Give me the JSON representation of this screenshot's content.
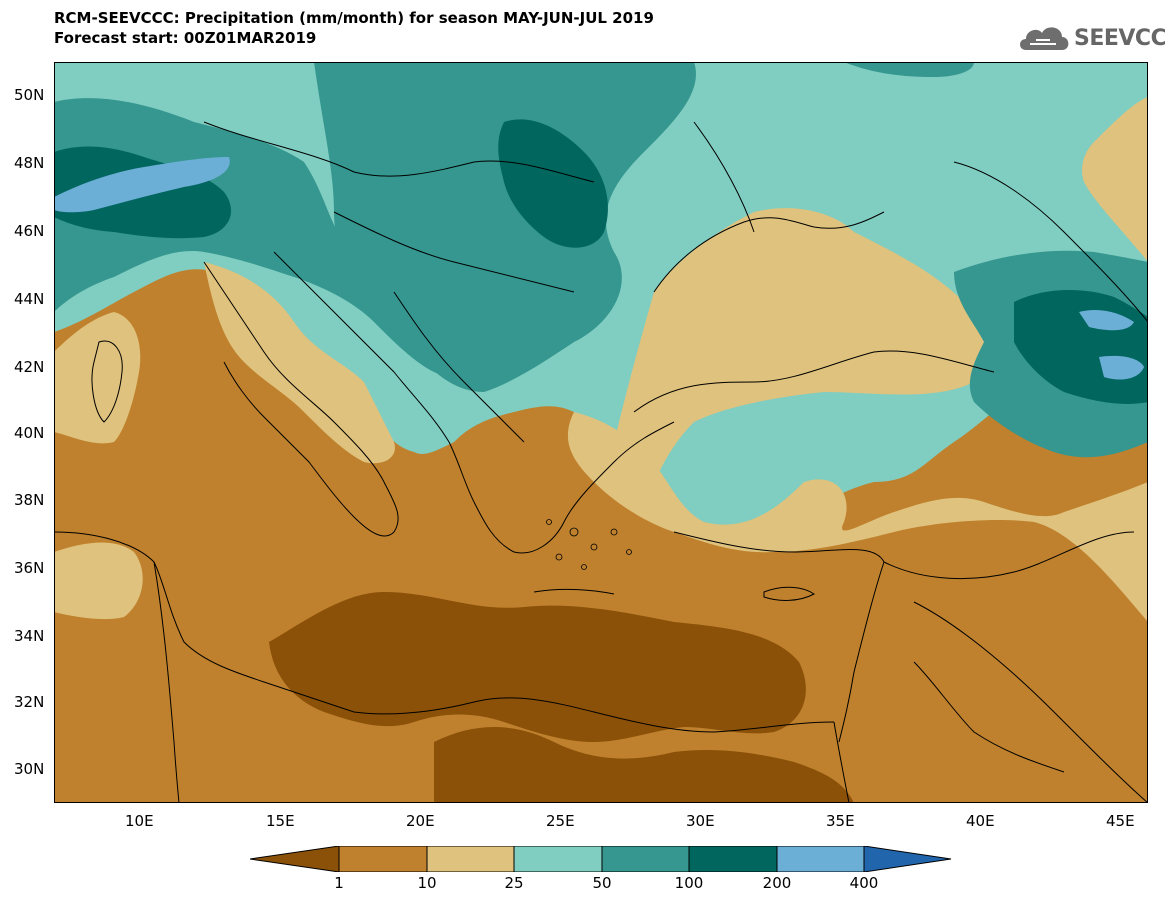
{
  "header": {
    "title": "RCM-SEEVCCC: Precipitation (mm/month) for season MAY-JUN-JUL 2019",
    "subtitle": "Forecast start: 00Z01MAR2019",
    "logo_text": "SEEVCCC"
  },
  "map": {
    "latitude_labels": [
      "50N",
      "48N",
      "46N",
      "44N",
      "42N",
      "40N",
      "38N",
      "36N",
      "34N",
      "32N",
      "30N"
    ],
    "longitude_labels": [
      "10E",
      "15E",
      "20E",
      "25E",
      "30E",
      "35E",
      "40E",
      "45E"
    ]
  },
  "legend": {
    "boundaries": [
      "1",
      "10",
      "25",
      "50",
      "100",
      "200",
      "400"
    ],
    "colors": [
      "#8B5109",
      "#BF812D",
      "#DFC27D",
      "#80CDC1",
      "#35978F",
      "#01665E",
      "#6BAED6",
      "#2166AC"
    ]
  }
}
